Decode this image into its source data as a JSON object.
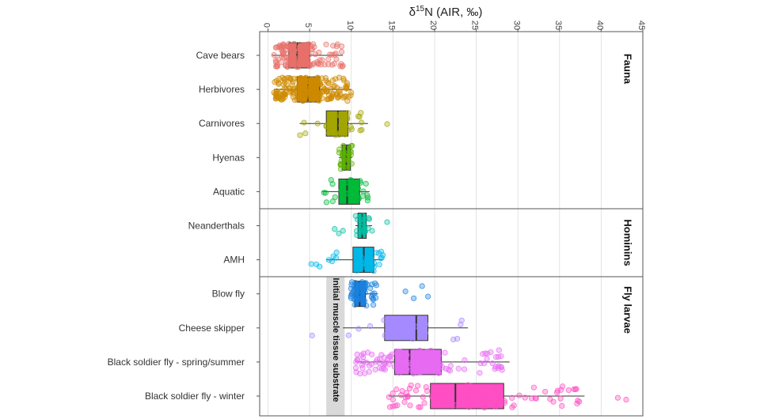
{
  "chart_data": {
    "type": "boxplot",
    "title": "",
    "xlabel": "δ15N (AIR, ‰)",
    "xlabel_parts": {
      "symbol": "δ",
      "superscript": "15",
      "element": "N",
      "unit": " (AIR, ‰)"
    },
    "xlim": [
      -1,
      45
    ],
    "x_ticks": [
      0,
      5,
      10,
      15,
      20,
      25,
      30,
      35,
      40,
      45
    ],
    "x_ticks_position": "top",
    "grid": true,
    "reference_band": {
      "label": "Initial muscle tissue substrate",
      "range": [
        7.0,
        9.2
      ]
    },
    "facets": [
      {
        "label": "Fauna",
        "categories": [
          "Cave bears",
          "Herbivores",
          "Carnivores",
          "Hyenas",
          "Aquatic"
        ]
      },
      {
        "label": "Hominins",
        "categories": [
          "Neanderthals",
          "AMH"
        ]
      },
      {
        "label": "Fly larvae",
        "categories": [
          "Blow fly",
          "Cheese skipper",
          "Black soldier fly - spring/summer",
          "Black soldier fly - winter"
        ]
      }
    ],
    "series": [
      {
        "name": "Cave bears",
        "color": "#E8706A",
        "whisker_low": 0.5,
        "q1": 2.5,
        "median": 3.5,
        "q3": 5.0,
        "whisker_high": 9.0,
        "n_points": 140
      },
      {
        "name": "Herbivores",
        "color": "#CD8A00",
        "whisker_low": 0.7,
        "q1": 3.5,
        "median": 4.8,
        "q3": 6.2,
        "whisker_high": 10.0,
        "n_points": 220
      },
      {
        "name": "Carnivores",
        "color": "#A3A500",
        "whisker_low": 3.8,
        "q1": 7.0,
        "median": 8.4,
        "q3": 9.6,
        "whisker_high": 12.0,
        "n_points": 40,
        "outliers": [
          14.3
        ]
      },
      {
        "name": "Hyenas",
        "color": "#5BB300",
        "whisker_low": 8.5,
        "q1": 8.9,
        "median": 9.4,
        "q3": 9.9,
        "whisker_high": 10.1,
        "n_points": 25
      },
      {
        "name": "Aquatic",
        "color": "#00BA38",
        "whisker_low": 6.5,
        "q1": 8.5,
        "median": 9.5,
        "q3": 11.0,
        "whisker_high": 12.2,
        "n_points": 30
      },
      {
        "name": "Neanderthals",
        "color": "#00BFA4",
        "whisker_low": 10.5,
        "q1": 10.8,
        "median": 11.3,
        "q3": 11.8,
        "whisker_high": 12.5,
        "n_points": 20,
        "outliers": [
          8.0,
          8.5,
          9.0,
          14.3
        ]
      },
      {
        "name": "AMH",
        "color": "#00B8E7",
        "whisker_low": 7.0,
        "q1": 10.2,
        "median": 11.5,
        "q3": 12.7,
        "whisker_high": 13.8,
        "n_points": 30,
        "outliers": [
          5.2,
          5.8,
          6.2
        ]
      },
      {
        "name": "Blow fly",
        "color": "#1A82E0",
        "whisker_low": 9.9,
        "q1": 10.4,
        "median": 11.0,
        "q3": 11.7,
        "whisker_high": 13.2,
        "n_points": 60,
        "outliers": [
          16.5,
          17.5,
          18.5,
          19.2
        ]
      },
      {
        "name": "Cheese skipper",
        "color": "#A58AFF",
        "whisker_low": 9.0,
        "q1": 14.0,
        "median": 17.8,
        "q3": 19.2,
        "whisker_high": 24.0,
        "n_points": 20,
        "outliers": [
          5.3
        ]
      },
      {
        "name": "Black soldier fly - spring/summer",
        "color": "#E76BF3",
        "whisker_low": 10.5,
        "q1": 15.2,
        "median": 17.0,
        "q3": 20.8,
        "whisker_high": 29.0,
        "n_points": 130
      },
      {
        "name": "Black soldier fly - winter",
        "color": "#FF4FC4",
        "whisker_low": 14.5,
        "q1": 19.5,
        "median": 22.5,
        "q3": 28.3,
        "whisker_high": 38.0,
        "n_points": 110,
        "outliers": [
          42.0,
          43.0
        ]
      }
    ]
  }
}
